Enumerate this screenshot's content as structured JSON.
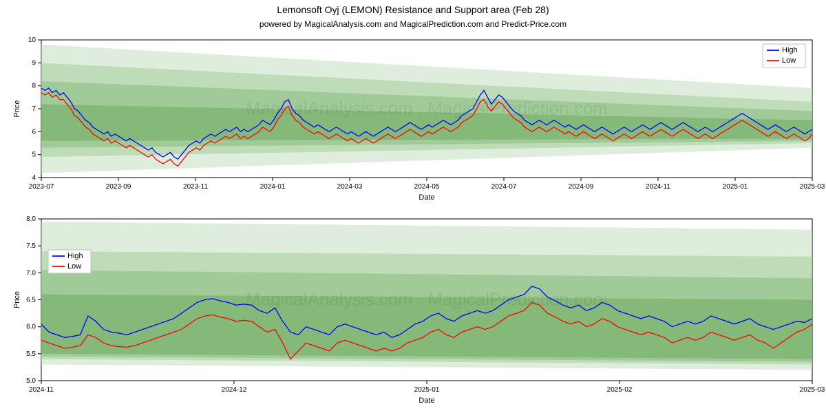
{
  "main_title": "Lemonsoft Oyj (LEMON) Resistance and Support area (Feb 28)",
  "sub_title": "powered by MagicalAnalysis.com and MagicalPrediction.com and Predict-Price.com",
  "title_fontsize": 14,
  "subtitle_fontsize": 12,
  "watermark_text": "MagicalAnalysis.com   .   MagicalPrediction.com",
  "background_color": "#ffffff",
  "axis_color": "#000000",
  "border_color": "#000000",
  "series_colors": {
    "high": "#0000ff",
    "low": "#ff0000"
  },
  "band_colors": [
    "#c5e0c0",
    "#a3cd9a",
    "#86bb7c",
    "#6dab62"
  ],
  "band_opacity": 0.55,
  "legend": {
    "items": [
      {
        "label": "High",
        "color": "#0000ff"
      },
      {
        "label": "Low",
        "color": "#ff0000"
      }
    ],
    "border_color": "#cccccc",
    "background": "#ffffff"
  },
  "top_chart": {
    "xlabel": "Date",
    "ylabel": "Price",
    "ylim": [
      4,
      10
    ],
    "yticks": [
      4,
      5,
      6,
      7,
      8,
      9,
      10
    ],
    "xtick_labels": [
      "2023-07",
      "2023-09",
      "2023-11",
      "2024-01",
      "2024-03",
      "2024-05",
      "2024-07",
      "2024-09",
      "2024-11",
      "2025-01",
      "2025-03"
    ],
    "n_points": 210,
    "legend_pos": "top-right",
    "bands": [
      {
        "y0_start": 4.2,
        "y1_start": 9.8,
        "y0_end": 5.3,
        "y1_end": 7.9
      },
      {
        "y0_start": 4.9,
        "y1_start": 9.0,
        "y0_end": 5.5,
        "y1_end": 7.3
      },
      {
        "y0_start": 5.3,
        "y1_start": 8.2,
        "y0_end": 5.6,
        "y1_end": 6.9
      },
      {
        "y0_start": 5.6,
        "y1_start": 7.2,
        "y0_end": 5.7,
        "y1_end": 6.5
      }
    ],
    "high": [
      7.9,
      7.8,
      7.9,
      7.7,
      7.8,
      7.6,
      7.7,
      7.5,
      7.3,
      7.0,
      6.9,
      6.7,
      6.5,
      6.4,
      6.2,
      6.1,
      6.0,
      5.9,
      6.0,
      5.8,
      5.9,
      5.8,
      5.7,
      5.6,
      5.7,
      5.6,
      5.5,
      5.4,
      5.3,
      5.2,
      5.3,
      5.1,
      5.0,
      4.9,
      5.0,
      5.1,
      4.9,
      4.8,
      5.0,
      5.2,
      5.4,
      5.5,
      5.6,
      5.5,
      5.7,
      5.8,
      5.9,
      5.8,
      5.9,
      6.0,
      6.1,
      6.0,
      6.1,
      6.2,
      6.0,
      6.1,
      6.0,
      6.1,
      6.2,
      6.3,
      6.5,
      6.4,
      6.3,
      6.5,
      6.8,
      7.0,
      7.3,
      7.4,
      7.0,
      6.8,
      6.7,
      6.5,
      6.4,
      6.3,
      6.2,
      6.3,
      6.2,
      6.1,
      6.0,
      6.1,
      6.2,
      6.1,
      6.0,
      5.9,
      6.0,
      5.9,
      5.8,
      5.9,
      6.0,
      5.9,
      5.8,
      5.9,
      6.0,
      6.1,
      6.2,
      6.1,
      6.0,
      6.1,
      6.2,
      6.3,
      6.4,
      6.3,
      6.2,
      6.1,
      6.2,
      6.3,
      6.2,
      6.3,
      6.4,
      6.5,
      6.4,
      6.3,
      6.4,
      6.5,
      6.7,
      6.8,
      6.9,
      7.0,
      7.3,
      7.6,
      7.8,
      7.5,
      7.2,
      7.4,
      7.6,
      7.5,
      7.3,
      7.1,
      6.9,
      6.8,
      6.7,
      6.5,
      6.4,
      6.3,
      6.4,
      6.5,
      6.4,
      6.3,
      6.4,
      6.5,
      6.4,
      6.3,
      6.2,
      6.3,
      6.2,
      6.1,
      6.2,
      6.3,
      6.2,
      6.1,
      6.0,
      6.1,
      6.2,
      6.1,
      6.0,
      5.9,
      6.0,
      6.1,
      6.2,
      6.1,
      6.0,
      6.1,
      6.2,
      6.3,
      6.2,
      6.1,
      6.2,
      6.3,
      6.4,
      6.3,
      6.2,
      6.1,
      6.2,
      6.3,
      6.4,
      6.3,
      6.2,
      6.1,
      6.0,
      6.1,
      6.2,
      6.1,
      6.0,
      6.1,
      6.2,
      6.3,
      6.4,
      6.5,
      6.6,
      6.7,
      6.8,
      6.7,
      6.6,
      6.5,
      6.4,
      6.3,
      6.2,
      6.1,
      6.2,
      6.3,
      6.2,
      6.1,
      6.0,
      6.1,
      6.2,
      6.1,
      6.0,
      5.9,
      6.0,
      6.1
    ],
    "low": [
      7.7,
      7.6,
      7.7,
      7.5,
      7.6,
      7.4,
      7.4,
      7.2,
      7.0,
      6.7,
      6.6,
      6.4,
      6.2,
      6.1,
      5.9,
      5.8,
      5.7,
      5.6,
      5.7,
      5.5,
      5.6,
      5.5,
      5.4,
      5.3,
      5.4,
      5.3,
      5.2,
      5.1,
      5.0,
      4.9,
      5.0,
      4.8,
      4.7,
      4.6,
      4.7,
      4.8,
      4.6,
      4.5,
      4.7,
      4.9,
      5.1,
      5.2,
      5.3,
      5.2,
      5.4,
      5.5,
      5.6,
      5.5,
      5.6,
      5.7,
      5.8,
      5.7,
      5.8,
      5.9,
      5.7,
      5.8,
      5.7,
      5.8,
      5.9,
      6.0,
      6.2,
      6.1,
      6.0,
      6.2,
      6.5,
      6.7,
      7.0,
      7.1,
      6.7,
      6.5,
      6.4,
      6.2,
      6.1,
      6.0,
      5.9,
      6.0,
      5.9,
      5.8,
      5.7,
      5.8,
      5.9,
      5.8,
      5.7,
      5.6,
      5.7,
      5.6,
      5.5,
      5.6,
      5.7,
      5.6,
      5.5,
      5.6,
      5.7,
      5.8,
      5.9,
      5.8,
      5.7,
      5.8,
      5.9,
      6.0,
      6.1,
      6.0,
      5.9,
      5.8,
      5.9,
      6.0,
      5.9,
      6.0,
      6.1,
      6.2,
      6.1,
      6.0,
      6.1,
      6.2,
      6.4,
      6.5,
      6.6,
      6.7,
      7.0,
      7.3,
      7.4,
      7.1,
      6.9,
      7.1,
      7.3,
      7.2,
      7.0,
      6.8,
      6.6,
      6.5,
      6.4,
      6.2,
      6.1,
      6.0,
      6.1,
      6.2,
      6.1,
      6.0,
      6.1,
      6.2,
      6.1,
      6.0,
      5.9,
      6.0,
      5.9,
      5.8,
      5.9,
      6.0,
      5.9,
      5.8,
      5.7,
      5.8,
      5.9,
      5.8,
      5.7,
      5.6,
      5.7,
      5.8,
      5.9,
      5.8,
      5.7,
      5.8,
      5.9,
      6.0,
      5.9,
      5.8,
      5.9,
      6.0,
      6.1,
      6.0,
      5.9,
      5.8,
      5.9,
      6.0,
      6.1,
      6.0,
      5.9,
      5.8,
      5.7,
      5.8,
      5.9,
      5.8,
      5.7,
      5.8,
      5.9,
      6.0,
      6.1,
      6.2,
      6.3,
      6.4,
      6.5,
      6.4,
      6.3,
      6.2,
      6.1,
      6.0,
      5.9,
      5.8,
      5.9,
      6.0,
      5.9,
      5.8,
      5.7,
      5.8,
      5.9,
      5.8,
      5.7,
      5.6,
      5.7,
      5.9
    ]
  },
  "bottom_chart": {
    "xlabel": "Date",
    "ylabel": "Price",
    "ylim": [
      5.0,
      8.0
    ],
    "yticks": [
      5.0,
      5.5,
      6.0,
      6.5,
      7.0,
      7.5,
      8.0
    ],
    "xtick_labels": [
      "2024-11",
      "2024-12",
      "2025-01",
      "2025-02",
      "2025-03"
    ],
    "n_points": 100,
    "legend_pos": "left",
    "bands": [
      {
        "y0_start": 5.3,
        "y1_start": 7.95,
        "y0_end": 5.2,
        "y1_end": 7.8
      },
      {
        "y0_start": 5.4,
        "y1_start": 7.4,
        "y0_end": 5.3,
        "y1_end": 7.3
      },
      {
        "y0_start": 5.45,
        "y1_start": 7.05,
        "y0_end": 5.35,
        "y1_end": 6.9
      },
      {
        "y0_start": 5.5,
        "y1_start": 6.6,
        "y0_end": 5.4,
        "y1_end": 6.5
      }
    ],
    "high": [
      6.05,
      5.9,
      5.85,
      5.8,
      5.82,
      5.85,
      6.2,
      6.1,
      5.95,
      5.9,
      5.88,
      5.85,
      5.9,
      5.95,
      6.0,
      6.05,
      6.1,
      6.15,
      6.25,
      6.35,
      6.45,
      6.5,
      6.52,
      6.48,
      6.45,
      6.4,
      6.42,
      6.4,
      6.3,
      6.25,
      6.35,
      6.1,
      5.9,
      5.85,
      6.0,
      5.95,
      5.9,
      5.85,
      6.0,
      6.05,
      6.0,
      5.95,
      5.9,
      5.85,
      5.9,
      5.8,
      5.85,
      5.95,
      6.05,
      6.1,
      6.2,
      6.25,
      6.15,
      6.1,
      6.2,
      6.25,
      6.3,
      6.25,
      6.3,
      6.4,
      6.5,
      6.55,
      6.6,
      6.75,
      6.7,
      6.55,
      6.48,
      6.4,
      6.35,
      6.4,
      6.3,
      6.35,
      6.45,
      6.4,
      6.3,
      6.25,
      6.2,
      6.15,
      6.2,
      6.15,
      6.1,
      6.0,
      6.05,
      6.1,
      6.05,
      6.1,
      6.2,
      6.15,
      6.1,
      6.05,
      6.1,
      6.15,
      6.05,
      6.0,
      5.95,
      6.0,
      6.05,
      6.1,
      6.08,
      6.15
    ],
    "low": [
      5.75,
      5.7,
      5.65,
      5.6,
      5.62,
      5.65,
      5.85,
      5.8,
      5.7,
      5.65,
      5.63,
      5.62,
      5.65,
      5.7,
      5.75,
      5.8,
      5.85,
      5.9,
      5.95,
      6.05,
      6.15,
      6.2,
      6.22,
      6.18,
      6.15,
      6.1,
      6.12,
      6.1,
      6.0,
      5.9,
      5.95,
      5.7,
      5.4,
      5.55,
      5.7,
      5.65,
      5.6,
      5.55,
      5.7,
      5.75,
      5.7,
      5.65,
      5.6,
      5.55,
      5.6,
      5.55,
      5.6,
      5.7,
      5.75,
      5.8,
      5.9,
      5.95,
      5.85,
      5.8,
      5.9,
      5.95,
      6.0,
      5.95,
      6.0,
      6.1,
      6.2,
      6.25,
      6.3,
      6.45,
      6.4,
      6.25,
      6.18,
      6.1,
      6.05,
      6.1,
      6.0,
      6.05,
      6.15,
      6.1,
      6.0,
      5.95,
      5.9,
      5.85,
      5.9,
      5.85,
      5.8,
      5.7,
      5.75,
      5.8,
      5.75,
      5.8,
      5.9,
      5.85,
      5.8,
      5.75,
      5.8,
      5.85,
      5.75,
      5.7,
      5.6,
      5.7,
      5.8,
      5.9,
      5.95,
      6.05
    ]
  }
}
